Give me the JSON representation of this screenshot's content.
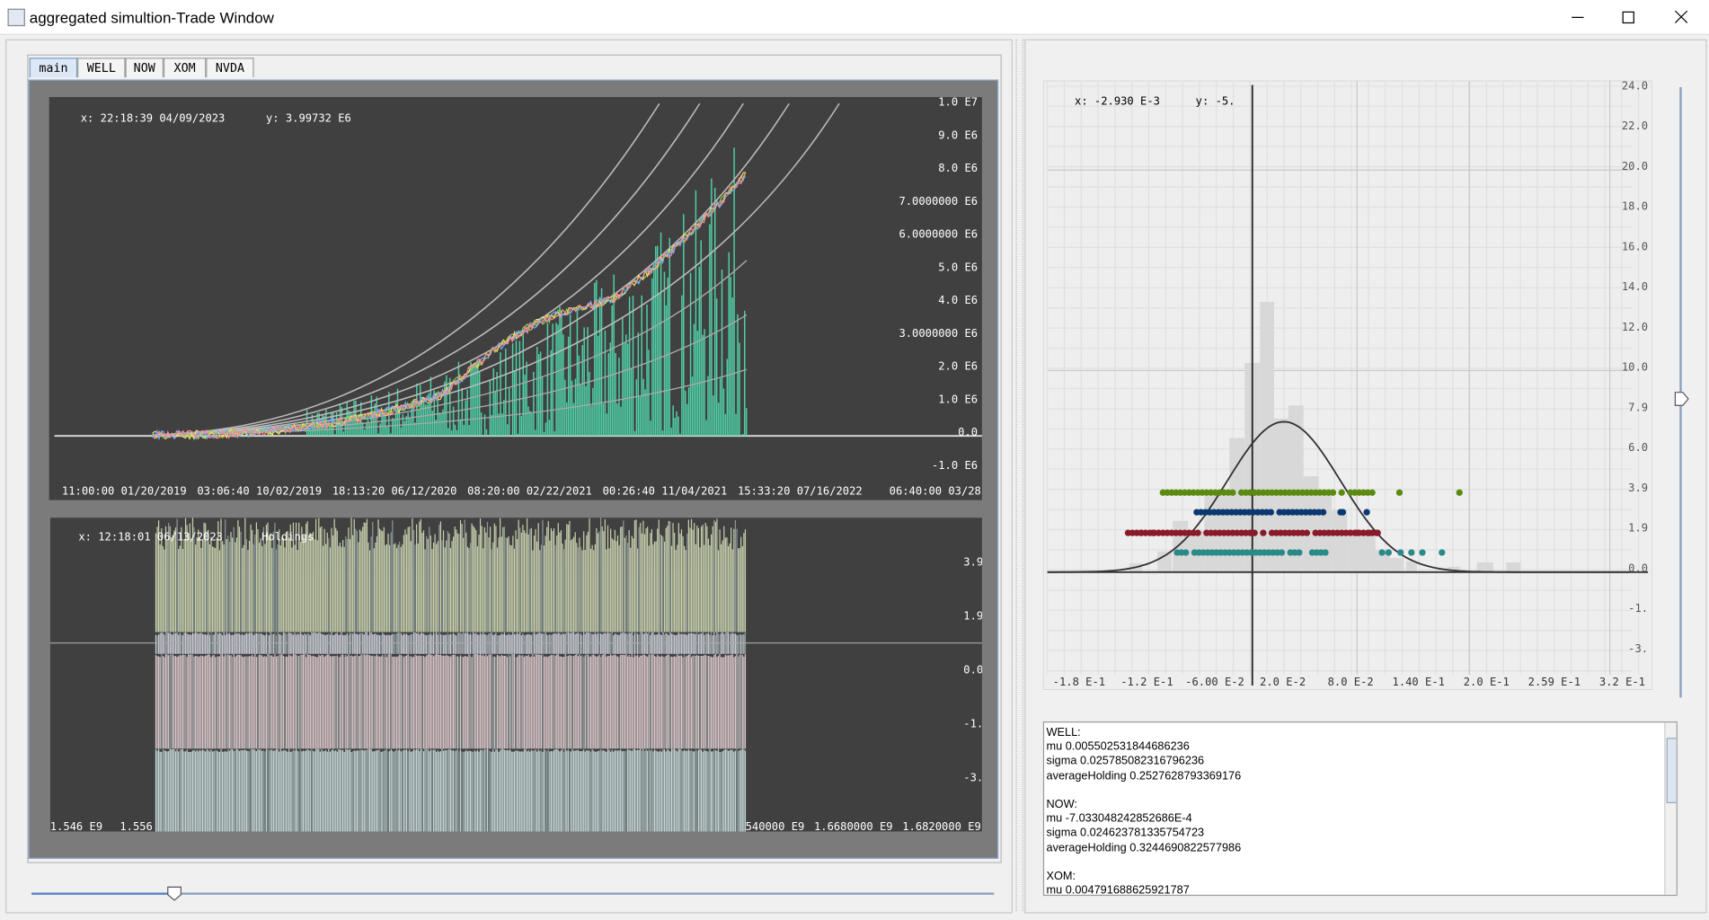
{
  "window": {
    "title": "aggregated simultion-Trade Window"
  },
  "tabs": [
    "main",
    "WELL",
    "NOW",
    "XOM",
    "NVDA"
  ],
  "price_chart": {
    "readout_x": "x: 22:18:39 04/09/2023",
    "readout_y": "y: 3.99732 E6",
    "yticks": [
      "1.0 E7",
      "9.0 E6",
      "8.0 E6",
      "7.0000000 E6",
      "6.0000000 E6",
      "5.0 E6",
      "4.0 E6",
      "3.0000000 E6",
      "2.0 E6",
      "1.0 E6",
      "0.0",
      "-1.0 E6"
    ],
    "xticks": [
      "11:00:00 01/20/2019",
      "03:06:40 10/02/2019",
      "18:13:20 06/12/2020",
      "08:20:00 02/22/2021",
      "00:26:40 11/04/2021",
      "15:33:20 07/16/2022",
      "06:40:00 03/28"
    ]
  },
  "holdings_chart": {
    "readout": "x: 12:18:01 06/13/2023",
    "label": "Holdings",
    "yticks": [
      "3.9",
      "1.9",
      "0.0",
      "-1.",
      "-3."
    ],
    "xticks": [
      "1.546 E9",
      "1.556 ",
      "540000 E9",
      "1.6680000 E9",
      "1.6820000 E9"
    ]
  },
  "distribution_chart": {
    "readout_x": "x: -2.930 E-3",
    "readout_y": "y: -5.",
    "yticks": [
      "24.0",
      "22.0",
      "20.0",
      "18.0",
      "16.0",
      "14.0",
      "12.0",
      "10.0",
      "7.9",
      "6.0",
      "3.9",
      "1.9",
      "0.0",
      "-1.",
      "-3."
    ],
    "xticks": [
      "-1.8 E-1",
      "-1.2 E-1",
      "-6.00 E-2",
      "2.0 E-2",
      "8.0 E-2",
      "1.40 E-1",
      "2.0 E-1",
      "2.59 E-1",
      "3.2 E-1"
    ]
  },
  "stats_text": [
    "WELL:",
    "mu 0.005502531844686236",
    "sigma 0.025785082316796236",
    "averageHolding 0.2527628793369176",
    "",
    "NOW:",
    "mu -7.033048242852686E-4",
    "sigma 0.024623781335754723",
    "averageHolding 0.3244690822577986",
    "",
    "XOM:",
    "mu 0.004791688625921787"
  ]
}
